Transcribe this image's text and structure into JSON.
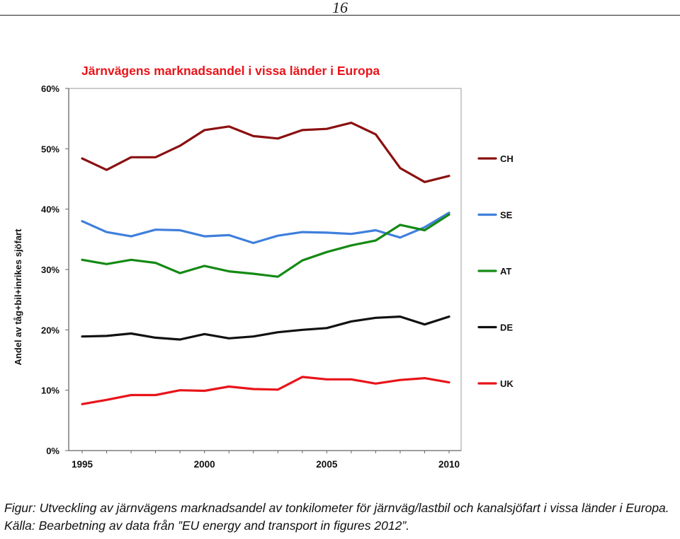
{
  "page": {
    "number": "16"
  },
  "chart_data": {
    "type": "line",
    "title": "Järnvägens marknadsandel i vissa länder i Europa",
    "ylabel": "Andel av tåg+bil+inrikes sjöfart",
    "xlabel": "",
    "xlim": [
      1995,
      2010
    ],
    "ylim": [
      0,
      60
    ],
    "x_ticks": [
      "1995",
      "2000",
      "2005",
      "2010"
    ],
    "y_ticks": [
      "0%",
      "10%",
      "20%",
      "30%",
      "40%",
      "50%",
      "60%"
    ],
    "grid": false,
    "legend": "right",
    "x": [
      1995,
      1996,
      1997,
      1998,
      1999,
      2000,
      2001,
      2002,
      2003,
      2004,
      2005,
      2006,
      2007,
      2008,
      2009,
      2010
    ],
    "series": [
      {
        "name": "CH",
        "color": "#8b1010",
        "values": [
          48.4,
          46.5,
          48.6,
          48.6,
          50.5,
          53.1,
          53.7,
          52.1,
          51.7,
          53.1,
          53.3,
          54.3,
          52.4,
          46.8,
          44.5,
          45.5
        ]
      },
      {
        "name": "SE",
        "color": "#3f7fdc",
        "values": [
          38.0,
          36.2,
          35.5,
          36.6,
          36.5,
          35.5,
          35.7,
          34.4,
          35.6,
          36.2,
          36.1,
          35.9,
          36.5,
          35.3,
          37.0,
          39.4
        ]
      },
      {
        "name": "AT",
        "color": "#148a14",
        "values": [
          31.6,
          30.9,
          31.6,
          31.1,
          29.4,
          30.6,
          29.7,
          29.3,
          28.8,
          31.5,
          32.9,
          34.0,
          34.8,
          37.4,
          36.5,
          39.1
        ]
      },
      {
        "name": "DE",
        "color": "#111111",
        "values": [
          18.9,
          19.0,
          19.4,
          18.7,
          18.4,
          19.3,
          18.6,
          18.9,
          19.6,
          20.0,
          20.3,
          21.4,
          22.0,
          22.2,
          20.9,
          22.2
        ]
      },
      {
        "name": "UK",
        "color": "#e8141a",
        "values": [
          7.7,
          8.4,
          9.2,
          9.2,
          10.0,
          9.9,
          10.6,
          10.2,
          10.1,
          12.2,
          11.8,
          11.8,
          11.1,
          11.7,
          12.0,
          11.3
        ]
      }
    ]
  },
  "caption": "Figur: Utveckling av järnvägens marknadsandel av tonkilometer för järnväg/lastbil och kanalsjöfart i vissa länder i Europa. Källa: Bearbetning av data från ”EU energy and transport in figures 2012”."
}
